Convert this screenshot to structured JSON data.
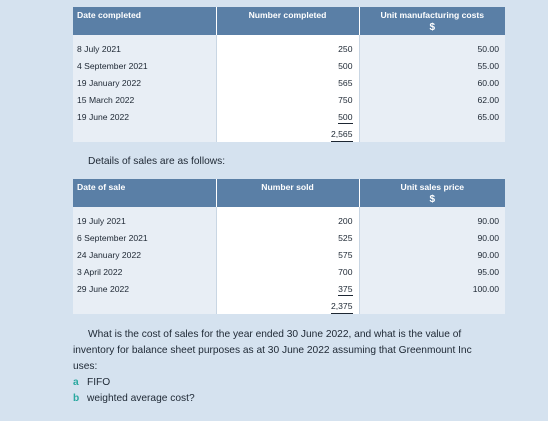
{
  "production_table": {
    "headers": [
      "Date completed",
      "Number completed",
      "Unit manufacturing costs"
    ],
    "currency": "$",
    "rows": [
      [
        "8 July 2021",
        "250",
        "50.00"
      ],
      [
        "4 September 2021",
        "500",
        "55.00"
      ],
      [
        "19 January 2022",
        "565",
        "60.00"
      ],
      [
        "15 March 2022",
        "750",
        "62.00"
      ],
      [
        "19 June 2022",
        "500",
        "65.00"
      ]
    ],
    "total": "2,565"
  },
  "sales_intro": "Details of sales are as follows:",
  "sales_table": {
    "headers": [
      "Date of sale",
      "Number sold",
      "Unit sales price"
    ],
    "currency": "$",
    "rows": [
      [
        "19 July 2021",
        "200",
        "90.00"
      ],
      [
        "6 September 2021",
        "525",
        "90.00"
      ],
      [
        "24 January 2022",
        "575",
        "90.00"
      ],
      [
        "3 April 2022",
        "700",
        "95.00"
      ],
      [
        "29 June 2022",
        "375",
        "100.00"
      ]
    ],
    "total": "2,375"
  },
  "question": {
    "line1": "What is the cost of sales for the year ended 30 June 2022, and what is the value of",
    "line2": "inventory for balance sheet purposes as at 30 June 2022 assuming that Greenmount Inc",
    "line3": "uses:",
    "options": [
      {
        "letter": "a",
        "text": "FIFO"
      },
      {
        "letter": "b",
        "text": "weighted average cost?"
      }
    ]
  }
}
